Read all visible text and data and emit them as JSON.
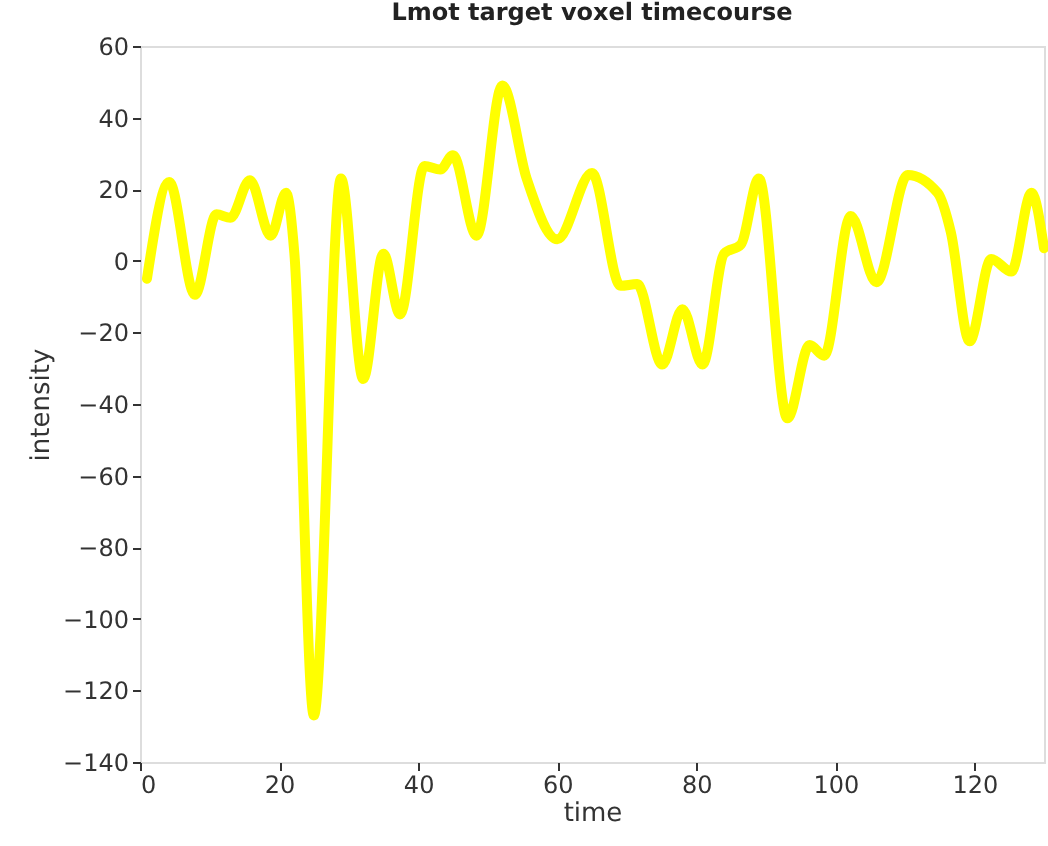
{
  "chart_data": {
    "type": "line",
    "title": "Lmot target voxel timecourse",
    "xlabel": "time",
    "ylabel": "intensity",
    "xlim": [
      0,
      130
    ],
    "xticks": [
      0,
      20,
      40,
      60,
      80,
      100,
      120
    ],
    "ylim": [
      -140,
      60
    ],
    "yticks": [
      -140,
      -120,
      -100,
      -80,
      -60,
      -40,
      -20,
      0,
      20,
      40,
      60
    ],
    "grid": false,
    "marker": "none",
    "line_style": "solid",
    "series": [
      {
        "color": "#ffff00",
        "x": [
          1,
          4.2,
          7.9,
          11,
          13,
          15.8,
          18.8,
          21,
          22.2,
          25,
          28.9,
          32.1,
          35,
          37.4,
          40.9,
          43.2,
          45,
          48.4,
          52.1,
          55.6,
          60,
          65,
          69.1,
          71.5,
          75.1,
          78,
          80.9,
          84,
          86.4,
          89,
          93.1,
          96.3,
          98.4,
          102.2,
          105.9,
          110.4,
          114.7,
          116.6,
          119.3,
          122.4,
          125.3,
          128.2,
          130
        ],
        "values": [
          -5,
          22,
          -9.5,
          13,
          12,
          22.5,
          7,
          19,
          2,
          -127,
          23,
          -33,
          2,
          -15,
          26.5,
          25.5,
          29.5,
          7,
          49,
          23,
          6,
          24.5,
          -7,
          -6.5,
          -29,
          -13.5,
          -29,
          2,
          4.5,
          23,
          -44,
          -23.5,
          -26.5,
          12.5,
          -6,
          24,
          19,
          8,
          -22.5,
          0.5,
          -3,
          19,
          3.5
        ]
      }
    ]
  }
}
